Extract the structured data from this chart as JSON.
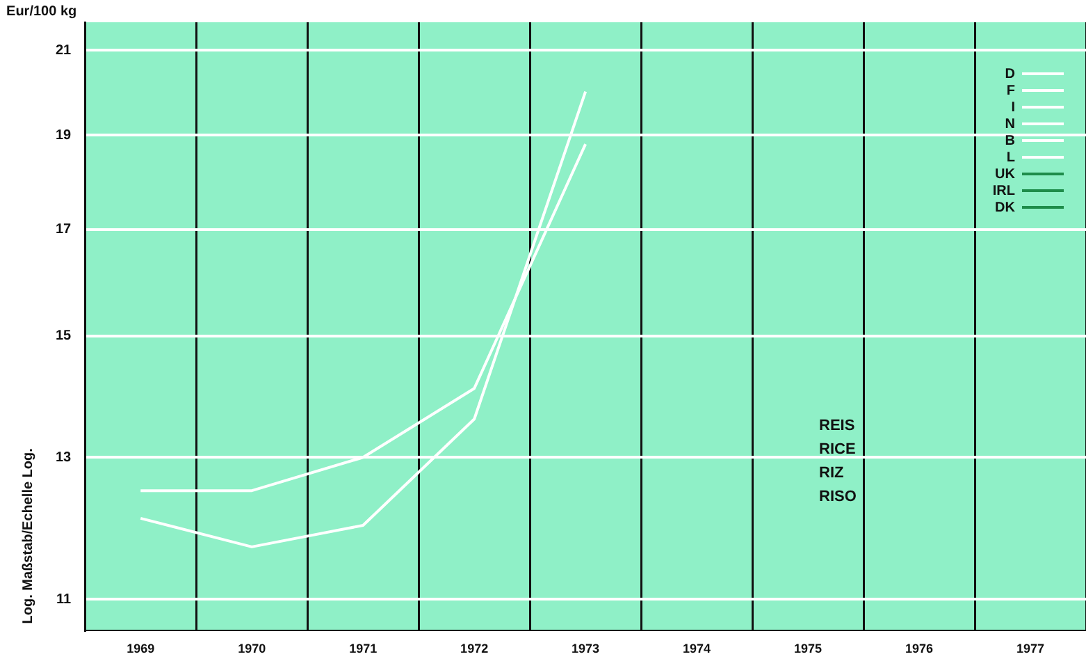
{
  "chart_data": {
    "type": "line",
    "ylabel": "Eur/100 kg",
    "categories": [
      "1969",
      "1970",
      "1971",
      "1972",
      "1973",
      "1974",
      "1975",
      "1976",
      "1977"
    ],
    "series": [
      {
        "name": "D",
        "color": "#ffffff",
        "line_style": "solid",
        "values": [
          12.5,
          12.5,
          13.0,
          14.1,
          18.8,
          null,
          null,
          null,
          null
        ]
      },
      {
        "name": "F",
        "color": "#ffffff",
        "line_style": "solid",
        "values": [
          12.1,
          11.7,
          12.0,
          13.6,
          20.0,
          null,
          null,
          null,
          null
        ]
      },
      {
        "name": "I",
        "color": "#ffffff",
        "line_style": "dashed",
        "values": [
          null,
          null,
          null,
          null,
          null,
          null,
          null,
          null,
          null
        ]
      },
      {
        "name": "N",
        "color": "#ffffff",
        "line_style": "dotted",
        "values": [
          null,
          null,
          null,
          null,
          null,
          null,
          null,
          null,
          null
        ]
      },
      {
        "name": "B",
        "color": "#ffffff",
        "line_style": "dashed",
        "values": [
          null,
          null,
          null,
          null,
          null,
          null,
          null,
          null,
          null
        ]
      },
      {
        "name": "L",
        "color": "#ffffff",
        "line_style": "dotted",
        "values": [
          null,
          null,
          null,
          null,
          null,
          null,
          null,
          null,
          null
        ]
      },
      {
        "name": "UK",
        "color": "#1e8c4a",
        "line_style": "solid",
        "values": [
          null,
          null,
          null,
          null,
          null,
          null,
          null,
          null,
          null
        ]
      },
      {
        "name": "IRL",
        "color": "#1e8c4a",
        "line_style": "dotted",
        "values": [
          null,
          null,
          null,
          null,
          null,
          null,
          null,
          null,
          null
        ]
      },
      {
        "name": "DK",
        "color": "#1e8c4a",
        "line_style": "dashed",
        "values": [
          null,
          null,
          null,
          null,
          null,
          null,
          null,
          null,
          null
        ]
      }
    ],
    "log": true,
    "ylim": [
      10.6,
      21.7
    ],
    "yticks": [
      11,
      13,
      15,
      17,
      19,
      21
    ],
    "grid": true,
    "legend": "top right",
    "marker": "none",
    "annotations": [
      "Log. Maßstab/Echelle Log.",
      "REIS",
      "RICE",
      "RIZ",
      "RISO"
    ]
  }
}
